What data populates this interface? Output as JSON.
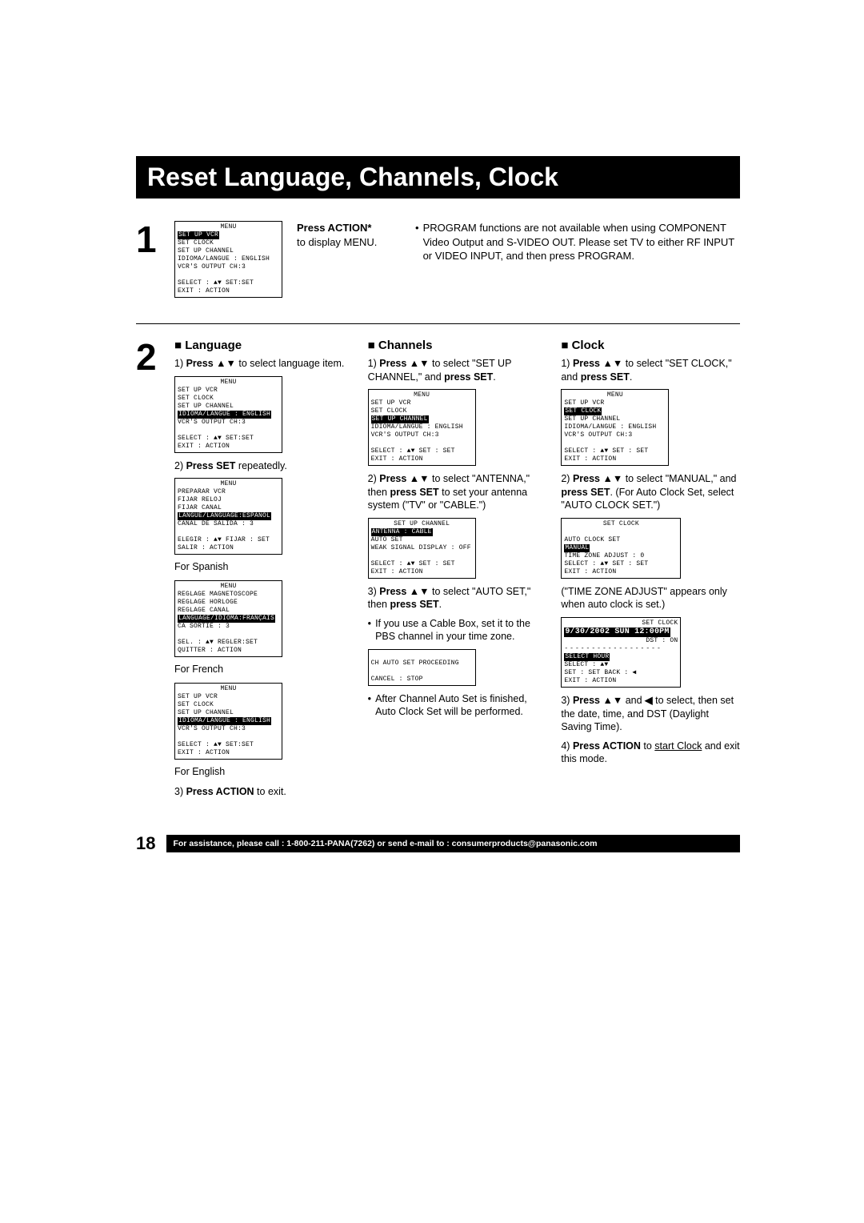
{
  "title": "Reset Language, Channels, Clock",
  "step1": {
    "num": "1",
    "osd": {
      "title": "MENU",
      "items": [
        "SET UP VCR",
        "SET CLOCK",
        "SET UP CHANNEL",
        "IDIOMA/LANGUE : ENGLISH",
        "VCR'S OUTPUT CH:3"
      ],
      "highlight_index": 0,
      "footer1": "SELECT : ▲▼    SET:SET",
      "footer2": "EXIT       : ACTION"
    },
    "inst_bold": "Press ACTION*",
    "inst_rest": "to display MENU.",
    "note": "PROGRAM functions are not available when using COMPONENT Video Output and S-VIDEO OUT. Please set TV to either RF INPUT or VIDEO INPUT, and then press PROGRAM."
  },
  "step2": {
    "num": "2",
    "language": {
      "heading": "Language",
      "p1_pre": "1) ",
      "p1_bold": "Press ▲▼",
      "p1_post": " to select language item.",
      "osd1": {
        "title": "MENU",
        "items": [
          "SET UP VCR",
          "SET CLOCK",
          "SET UP CHANNEL",
          "IDIOMA/LANGUE : ENGLISH",
          "VCR'S OUTPUT CH:3"
        ],
        "hi": 3,
        "f1": "SELECT : ▲▼    SET:SET",
        "f2": "EXIT       : ACTION"
      },
      "p2_pre": "2) ",
      "p2_bold": "Press SET",
      "p2_post": " repeatedly.",
      "osd2": {
        "title": "MENU",
        "items": [
          "PREPARAR VCR",
          "FIJAR RELOJ",
          "FIJAR CANAL",
          "LANGUE/LANGUAGE:ESPAÑOL",
          "CANAL DE SALIDA : 3"
        ],
        "hi": 3,
        "f1": "ELEGIR : ▲▼  FIJAR : SET",
        "f2": "SALIR     : ACTION"
      },
      "cap2": "For Spanish",
      "osd3": {
        "title": "MENU",
        "items": [
          "REGLAGE MAGNETOSCOPE",
          "REGLAGE HORLOGE",
          "REGLAGE CANAL",
          "LANGUAGE/IDIOMA:FRANÇAIS",
          "CA SORTIE : 3"
        ],
        "hi": 3,
        "f1": "SEL.      : ▲▼  REGLER:SET",
        "f2": "QUITTER : ACTION"
      },
      "cap3": "For French",
      "osd4": {
        "title": "MENU",
        "items": [
          "SET UP VCR",
          "SET CLOCK",
          "SET UP CHANNEL",
          "IDIOMA/LANGUE : ENGLISH",
          "VCR'S OUTPUT CH:3"
        ],
        "hi": 3,
        "f1": "SELECT : ▲▼    SET:SET",
        "f2": "EXIT       : ACTION"
      },
      "cap4": "For English",
      "p3_pre": "3) ",
      "p3_bold": "Press ACTION",
      "p3_post": " to exit."
    },
    "channels": {
      "heading": "Channels",
      "p1a": "1) ",
      "p1b": "Press ▲▼",
      "p1c": " to select \"SET UP CHANNEL,\" and ",
      "p1d": "press SET",
      "p1e": ".",
      "osd1": {
        "title": "MENU",
        "items": [
          "SET UP VCR",
          "SET CLOCK",
          "SET UP CHANNEL",
          "IDIOMA/LANGUE : ENGLISH",
          "VCR'S OUTPUT CH:3"
        ],
        "hi": 2,
        "f1": "SELECT : ▲▼    SET : SET",
        "f2": "EXIT       : ACTION"
      },
      "p2a": "2) ",
      "p2b": "Press ▲▼",
      "p2c": " to select \"ANTENNA,\" then ",
      "p2d": "press SET",
      "p2e": " to set your antenna system (\"TV\" or \"CABLE.\")",
      "osd2_title": "SET UP CHANNEL",
      "osd2_line1": "ANTENNA  :  CABLE",
      "osd2_line2": "AUTO SET",
      "osd2_line3": "WEAK SIGNAL DISPLAY : OFF",
      "osd2_f1": "SELECT : ▲▼    SET : SET",
      "osd2_f2": "EXIT       : ACTION",
      "p3a": "3) ",
      "p3b": "Press ▲▼",
      "p3c": " to select \"AUTO SET,\" then ",
      "p3d": "press SET",
      "p3e": ".",
      "note1": "If you use a Cable Box, set it to the PBS channel in your time zone.",
      "osd3_l1": "CH AUTO SET PROCEEDING",
      "osd3_l2": "CANCEL : STOP",
      "note2": "After Channel Auto Set is finished, Auto Clock Set will be performed."
    },
    "clock": {
      "heading": "Clock",
      "p1a": "1) ",
      "p1b": "Press ▲▼",
      "p1c": " to select \"SET CLOCK,\" and ",
      "p1d": "press SET",
      "p1e": ".",
      "osd1": {
        "title": "MENU",
        "items": [
          "SET UP VCR",
          "SET CLOCK",
          "SET UP CHANNEL",
          "IDIOMA/LANGUE : ENGLISH",
          "VCR'S OUTPUT CH:3"
        ],
        "hi": 1,
        "f1": "SELECT : ▲▼    SET : SET",
        "f2": "EXIT       : ACTION"
      },
      "p2a": "2) ",
      "p2b": "Press ▲▼",
      "p2c": " to select \"MANUAL,\" and ",
      "p2d": "press SET",
      "p2e": ". (For Auto Clock Set, select \"AUTO CLOCK SET.\")",
      "osd2_title": "SET CLOCK",
      "osd2_l1": "AUTO CLOCK SET",
      "osd2_l2": "MANUAL",
      "osd2_l3": "TIME ZONE ADJUST  :  0",
      "osd2_f1": "SELECT : ▲▼    SET : SET",
      "osd2_f2": "EXIT       : ACTION",
      "note1": "(\"TIME ZONE ADJUST\" appears only when auto clock is set.)",
      "osd3_title": "SET CLOCK",
      "osd3_big": "9/30/2002 SUN 12:00PM",
      "osd3_dst": "DST : ON",
      "osd3_sel": "SELECT HOUR",
      "osd3_f1": "SELECT : ▲▼",
      "osd3_f2": "SET       : SET       BACK : ◀",
      "osd3_f3": "EXIT      : ACTION",
      "p3a": "3) ",
      "p3b": "Press ▲▼",
      "p3c": " and ",
      "p3d": "◀",
      "p3e": " to select, then set the date, time, and DST (Daylight Saving Time).",
      "p4a": "4) ",
      "p4b": "Press ACTION",
      "p4c": " to ",
      "p4d": "start Clock",
      "p4e": " and exit this mode."
    }
  },
  "footer": {
    "page": "18",
    "text": "For assistance, please call : 1-800-211-PANA(7262) or send e-mail to : consumerproducts@panasonic.com"
  }
}
